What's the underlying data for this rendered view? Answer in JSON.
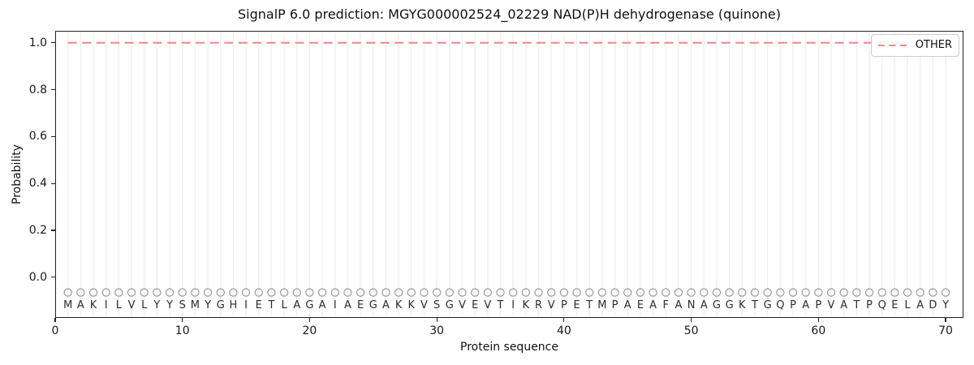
{
  "chart_data": {
    "type": "line",
    "title": "SignalP 6.0 prediction: MGYG000002524_02229 NAD(P)H dehydrogenase (quinone)",
    "xlabel": "Protein sequence",
    "ylabel": "Probability",
    "xlim": [
      0,
      71.4
    ],
    "ylim": [
      -0.17,
      1.05
    ],
    "x_ticks": [
      0,
      10,
      20,
      30,
      40,
      50,
      60,
      70
    ],
    "y_ticks": [
      "0.0",
      "0.2",
      "0.4",
      "0.6",
      "0.8",
      "1.0"
    ],
    "grid": {
      "vertical": true,
      "horizontal": false,
      "color": "#efefef"
    },
    "axis_color": "#222222",
    "legend": {
      "position": "upper-right",
      "entries": [
        {
          "label": "OTHER",
          "color": "#f28585",
          "line_style": "dashed"
        }
      ]
    },
    "series": [
      {
        "name": "OTHER",
        "line_style": "dashed",
        "color": "#f28585",
        "x_start": 1,
        "x_end": 70,
        "y_constant": 1.0
      }
    ],
    "sequence": "MAKILVLYYSMYGHIETLAGAIAEGAKKVSGVEVTIKRVPETMPAEAFANAGGKTGQPAPVATPQELADY",
    "sequence_length": 70,
    "residue_marker": {
      "shape": "open-circle",
      "color": "#999999",
      "y_value": -0.065
    },
    "residue_text_color": "#2e2e2e"
  }
}
